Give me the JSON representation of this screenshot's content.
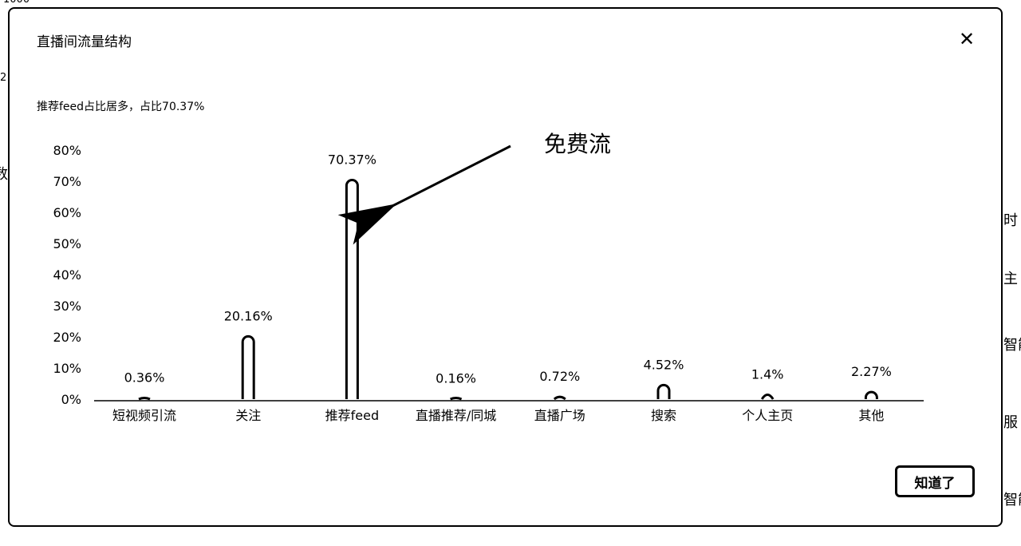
{
  "background_fragments": [
    "1000",
    "2",
    "数",
    "时",
    "主",
    "智能",
    "服",
    "智能"
  ],
  "modal": {
    "title": "直播间流量结构",
    "close_icon": "close-icon",
    "subtitle": "推荐feed占比居多，占比70.37%",
    "annotation": "免费流",
    "ok_label": "知道了"
  },
  "chart_data": {
    "type": "bar",
    "categories": [
      "短视频引流",
      "关注",
      "推荐feed",
      "直播推荐/同城",
      "直播广场",
      "搜索",
      "个人主页",
      "其他"
    ],
    "values": [
      0.36,
      20.16,
      70.37,
      0.16,
      0.72,
      4.52,
      1.4,
      2.27
    ],
    "value_labels": [
      "0.36%",
      "20.16%",
      "70.37%",
      "0.16%",
      "0.72%",
      "4.52%",
      "1.4%",
      "2.27%"
    ],
    "ylim": [
      0,
      80
    ],
    "yticks": [
      "0%",
      "10%",
      "20%",
      "30%",
      "40%",
      "50%",
      "60%",
      "70%",
      "80%"
    ],
    "grid": false,
    "legend": "none"
  }
}
